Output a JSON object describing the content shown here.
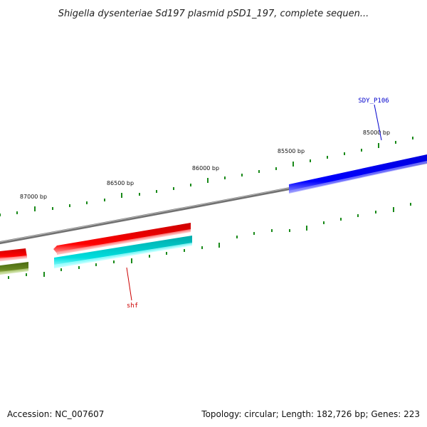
{
  "title": "Shigella dysenteriae Sd197 plasmid pSD1_197, complete sequen...",
  "scale_labels": [
    "85000 bp",
    "85500 bp",
    "86000 bp",
    "86500 bp",
    "87000 bp"
  ],
  "genes": [
    {
      "name": "SDY_P106",
      "color": "#0000cc"
    },
    {
      "name": "shf",
      "color": "#cc0000"
    }
  ],
  "footer": {
    "accession": "Accession: NC_007607",
    "summary": "Topology: circular; Length: 182,726 bp; Genes: 223"
  },
  "colors": {
    "backbone": "#808080",
    "tick": "#1a8a1a",
    "forward_gene": "#0000ee",
    "reverse_gene_red": "#ee0000",
    "reverse_gene_cyan": "#00cccc",
    "reverse_gene_olive": "#5a7a1a"
  }
}
